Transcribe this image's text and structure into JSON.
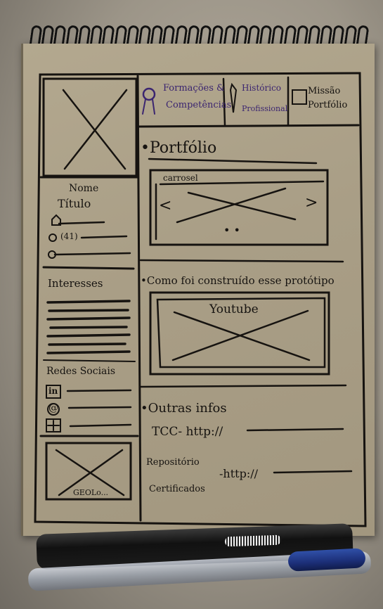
{
  "nav": {
    "item1_line1": "Formações &",
    "item1_line2": "Competências",
    "item2_line1": "Histórico",
    "item2_line2": "Profissional",
    "item3_line1": "Missão",
    "item3_line2": "Portfólio"
  },
  "sidebar": {
    "name": "Nome",
    "title": "Título",
    "phone_prefix": "(41)",
    "interests": "Interesses",
    "social": "Redes Sociais",
    "linkedin_glyph": "in",
    "at_glyph": "@",
    "map_label": "GEOLo..."
  },
  "main": {
    "portfolio_heading": "•Portfólio",
    "carousel_label": "carrosel",
    "carousel_prev": "<",
    "carousel_next": ">",
    "carousel_dots": "• •",
    "build_heading": "•Como foi construído esse protótipo",
    "video_label": "Youtube",
    "other_heading": "•Outras infos",
    "tcc_line": "TCC- http://",
    "repo_line1": "Repositório",
    "repo_line2": "Certificados",
    "repo_link": "-http://"
  },
  "colors": {
    "ink": "#161310",
    "paper": "#aa9f87",
    "purple_ink": "#3b2570",
    "pen_blue": "#1c2f78"
  }
}
